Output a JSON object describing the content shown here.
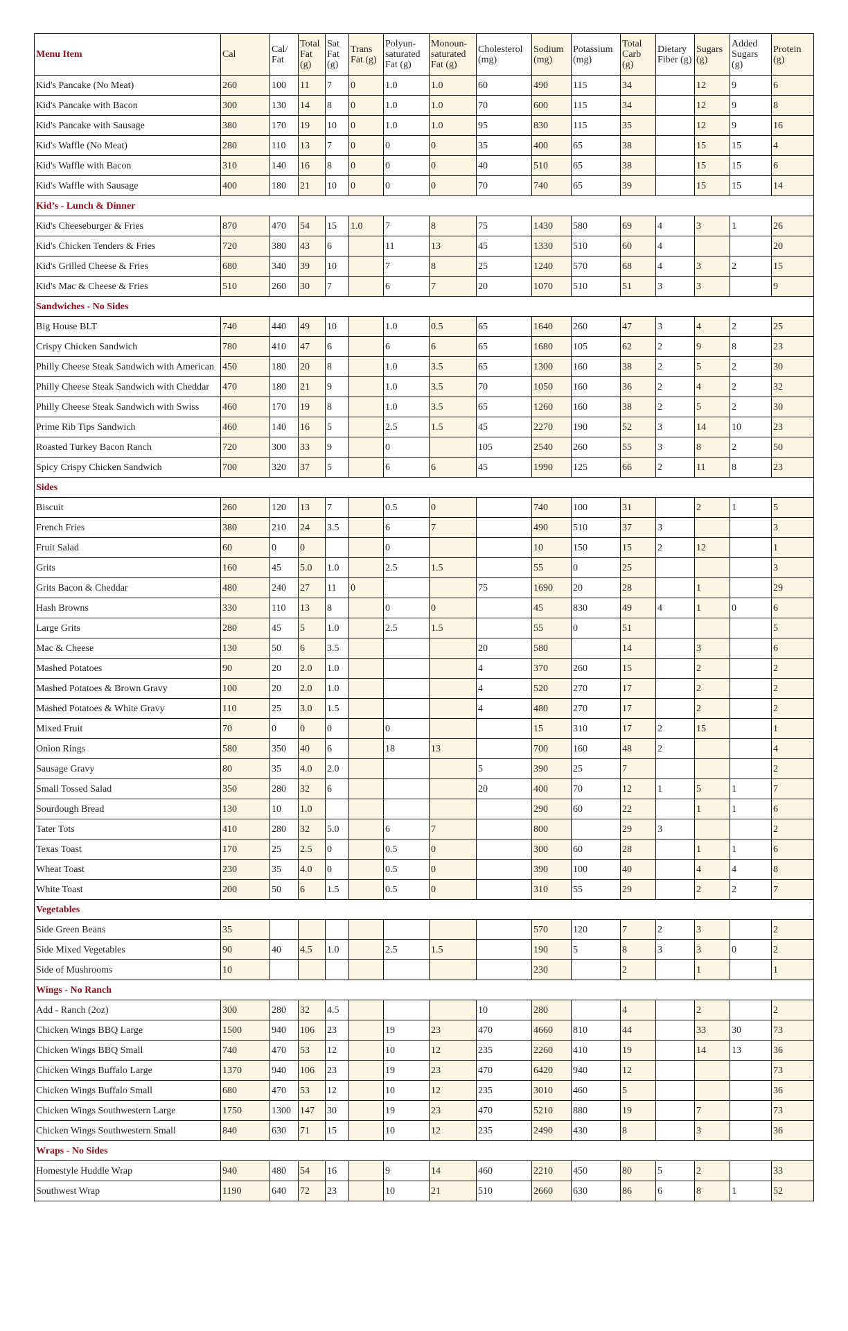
{
  "table": {
    "header": [
      "Menu Item",
      "Cal",
      "Cal/ Fat",
      "Total Fat (g)",
      "Sat Fat (g)",
      "Trans Fat (g)",
      "Polyun-saturated Fat (g)",
      "Monoun-saturated Fat (g)",
      "Cholesterol (mg)",
      "Sodium (mg)",
      "Potassium (mg)",
      "Total Carb (g)",
      "Dietary Fiber (g)",
      "Sugars (g)",
      "Added Sugars (g)",
      "Protein (g)"
    ],
    "rows": [
      {
        "cells": [
          "Kid's Pancake (No Meat)",
          "260",
          "100",
          "11",
          "7",
          "0",
          "1.0",
          "1.0",
          "60",
          "490",
          "115",
          "34",
          null,
          "12",
          "9",
          "6"
        ]
      },
      {
        "cells": [
          "Kid's Pancake with Bacon",
          "300",
          "130",
          "14",
          "8",
          "0",
          "1.0",
          "1.0",
          "70",
          "600",
          "115",
          "34",
          null,
          "12",
          "9",
          "8"
        ]
      },
      {
        "cells": [
          "Kid's Pancake with Sausage",
          "380",
          "170",
          "19",
          "10",
          "0",
          "1.0",
          "1.0",
          "95",
          "830",
          "115",
          "35",
          null,
          "12",
          "9",
          "16"
        ]
      },
      {
        "cells": [
          "Kid's Waffle (No Meat)",
          "280",
          "110",
          "13",
          "7",
          "0",
          "0",
          "0",
          "35",
          "400",
          "65",
          "38",
          null,
          "15",
          "15",
          "4"
        ]
      },
      {
        "cells": [
          "Kid's Waffle with Bacon",
          "310",
          "140",
          "16",
          "8",
          "0",
          "0",
          "0",
          "40",
          "510",
          "65",
          "38",
          null,
          "15",
          "15",
          "6"
        ]
      },
      {
        "cells": [
          "Kid's Waffle with Sausage",
          "400",
          "180",
          "21",
          "10",
          "0",
          "0",
          "0",
          "70",
          "740",
          "65",
          "39",
          null,
          "15",
          "15",
          "14"
        ]
      },
      {
        "section": "Kid’s - Lunch & Dinner"
      },
      {
        "cells": [
          "Kid's Cheeseburger & Fries",
          "870",
          "470",
          "54",
          "15",
          "1.0",
          "7",
          "8",
          "75",
          "1430",
          "580",
          "69",
          "4",
          "3",
          "1",
          "26"
        ]
      },
      {
        "cells": [
          "Kid's Chicken Tenders & Fries",
          "720",
          "380",
          "43",
          "6",
          null,
          "11",
          "13",
          "45",
          "1330",
          "510",
          "60",
          "4",
          null,
          null,
          "20"
        ]
      },
      {
        "cells": [
          "Kid's Grilled Cheese & Fries",
          "680",
          "340",
          "39",
          "10",
          null,
          "7",
          "8",
          "25",
          "1240",
          "570",
          "68",
          "4",
          "3",
          "2",
          "15"
        ]
      },
      {
        "cells": [
          "Kid's Mac & Cheese & Fries",
          "510",
          "260",
          "30",
          "7",
          null,
          "6",
          "7",
          "20",
          "1070",
          "510",
          "51",
          "3",
          "3",
          null,
          "9"
        ]
      },
      {
        "section": "Sandwiches - No Sides"
      },
      {
        "cells": [
          "Big House BLT",
          "740",
          "440",
          "49",
          "10",
          null,
          "1.0",
          "0.5",
          "65",
          "1640",
          "260",
          "47",
          "3",
          "4",
          "2",
          "25"
        ]
      },
      {
        "cells": [
          "Crispy Chicken Sandwich",
          "780",
          "410",
          "47",
          "6",
          null,
          "6",
          "6",
          "65",
          "1680",
          "105",
          "62",
          "2",
          "9",
          "8",
          "23"
        ]
      },
      {
        "cells": [
          "Philly Cheese Steak Sandwich with American",
          "450",
          "180",
          "20",
          "8",
          null,
          "1.0",
          "3.5",
          "65",
          "1300",
          "160",
          "38",
          "2",
          "5",
          "2",
          "30"
        ]
      },
      {
        "cells": [
          "Philly Cheese Steak Sandwich with Cheddar",
          "470",
          "180",
          "21",
          "9",
          null,
          "1.0",
          "3.5",
          "70",
          "1050",
          "160",
          "36",
          "2",
          "4",
          "2",
          "32"
        ]
      },
      {
        "cells": [
          "Philly Cheese Steak Sandwich with Swiss",
          "460",
          "170",
          "19",
          "8",
          null,
          "1.0",
          "3.5",
          "65",
          "1260",
          "160",
          "38",
          "2",
          "5",
          "2",
          "30"
        ]
      },
      {
        "cells": [
          "Prime Rib Tips Sandwich",
          "460",
          "140",
          "16",
          "5",
          null,
          "2.5",
          "1.5",
          "45",
          "2270",
          "190",
          "52",
          "3",
          "14",
          "10",
          "23"
        ]
      },
      {
        "cells": [
          "Roasted Turkey Bacon Ranch",
          "720",
          "300",
          "33",
          "9",
          null,
          "0",
          null,
          "105",
          "2540",
          "260",
          "55",
          "3",
          "8",
          "2",
          "50"
        ]
      },
      {
        "cells": [
          "Spicy Crispy Chicken Sandwich",
          "700",
          "320",
          "37",
          "5",
          null,
          "6",
          "6",
          "45",
          "1990",
          "125",
          "66",
          "2",
          "11",
          "8",
          "23"
        ]
      },
      {
        "section": "Sides"
      },
      {
        "cells": [
          "Biscuit",
          "260",
          "120",
          "13",
          "7",
          null,
          "0.5",
          "0",
          null,
          "740",
          "100",
          "31",
          null,
          "2",
          "1",
          "5"
        ]
      },
      {
        "cells": [
          "French Fries",
          "380",
          "210",
          "24",
          "3.5",
          null,
          "6",
          "7",
          null,
          "490",
          "510",
          "37",
          "3",
          null,
          null,
          "3"
        ]
      },
      {
        "cells": [
          "Fruit Salad",
          "60",
          "0",
          "0",
          null,
          null,
          "0",
          null,
          null,
          "10",
          "150",
          "15",
          "2",
          "12",
          null,
          "1"
        ]
      },
      {
        "cells": [
          "Grits",
          "160",
          "45",
          "5.0",
          "1.0",
          null,
          "2.5",
          "1.5",
          null,
          "55",
          "0",
          "25",
          null,
          null,
          null,
          "3"
        ]
      },
      {
        "cells": [
          "Grits Bacon & Cheddar",
          "480",
          "240",
          "27",
          "11",
          "0",
          null,
          null,
          "75",
          "1690",
          "20",
          "28",
          null,
          "1",
          null,
          "29"
        ]
      },
      {
        "cells": [
          "Hash Browns",
          "330",
          "110",
          "13",
          "8",
          null,
          "0",
          "0",
          null,
          "45",
          "830",
          "49",
          "4",
          "1",
          "0",
          "6"
        ]
      },
      {
        "cells": [
          "Large Grits",
          "280",
          "45",
          "5",
          "1.0",
          null,
          "2.5",
          "1.5",
          null,
          "55",
          "0",
          "51",
          null,
          null,
          null,
          "5"
        ]
      },
      {
        "cells": [
          "Mac & Cheese",
          "130",
          "50",
          "6",
          "3.5",
          null,
          null,
          null,
          "20",
          "580",
          null,
          "14",
          null,
          "3",
          null,
          "6"
        ]
      },
      {
        "cells": [
          "Mashed Potatoes",
          "90",
          "20",
          "2.0",
          "1.0",
          null,
          null,
          null,
          "4",
          "370",
          "260",
          "15",
          null,
          "2",
          null,
          "2"
        ]
      },
      {
        "cells": [
          "Mashed Potatoes & Brown Gravy",
          "100",
          "20",
          "2.0",
          "1.0",
          null,
          null,
          null,
          "4",
          "520",
          "270",
          "17",
          null,
          "2",
          null,
          "2"
        ]
      },
      {
        "cells": [
          "Mashed Potatoes & White Gravy",
          "110",
          "25",
          "3.0",
          "1.5",
          null,
          null,
          null,
          "4",
          "480",
          "270",
          "17",
          null,
          "2",
          null,
          "2"
        ]
      },
      {
        "cells": [
          "Mixed Fruit",
          "70",
          "0",
          "0",
          "0",
          null,
          "0",
          null,
          null,
          "15",
          "310",
          "17",
          "2",
          "15",
          null,
          "1"
        ]
      },
      {
        "cells": [
          "Onion Rings",
          "580",
          "350",
          "40",
          "6",
          null,
          "18",
          "13",
          null,
          "700",
          "160",
          "48",
          "2",
          null,
          null,
          "4"
        ]
      },
      {
        "cells": [
          "Sausage Gravy",
          "80",
          "35",
          "4.0",
          "2.0",
          null,
          null,
          null,
          "5",
          "390",
          "25",
          "7",
          null,
          null,
          null,
          "2"
        ]
      },
      {
        "cells": [
          "Small Tossed Salad",
          "350",
          "280",
          "32",
          "6",
          null,
          null,
          null,
          "20",
          "400",
          "70",
          "12",
          "1",
          "5",
          "1",
          "7"
        ]
      },
      {
        "cells": [
          "Sourdough Bread",
          "130",
          "10",
          "1.0",
          null,
          null,
          null,
          null,
          null,
          "290",
          "60",
          "22",
          null,
          "1",
          "1",
          "6"
        ]
      },
      {
        "cells": [
          "Tater Tots",
          "410",
          "280",
          "32",
          "5.0",
          null,
          "6",
          "7",
          null,
          "800",
          null,
          "29",
          "3",
          null,
          null,
          "2"
        ]
      },
      {
        "cells": [
          "Texas Toast",
          "170",
          "25",
          "2.5",
          "0",
          null,
          "0.5",
          "0",
          null,
          "300",
          "60",
          "28",
          null,
          "1",
          "1",
          "6"
        ]
      },
      {
        "cells": [
          "Wheat Toast",
          "230",
          "35",
          "4.0",
          "0",
          null,
          "0.5",
          "0",
          null,
          "390",
          "100",
          "40",
          null,
          "4",
          "4",
          "8"
        ]
      },
      {
        "cells": [
          "White Toast",
          "200",
          "50",
          "6",
          "1.5",
          null,
          "0.5",
          "0",
          null,
          "310",
          "55",
          "29",
          null,
          "2",
          "2",
          "7"
        ]
      },
      {
        "section": "Vegetables"
      },
      {
        "cells": [
          "Side Green Beans",
          "35",
          null,
          null,
          null,
          null,
          null,
          null,
          null,
          "570",
          "120",
          "7",
          "2",
          "3",
          null,
          "2"
        ]
      },
      {
        "cells": [
          "Side Mixed Vegetables",
          "90",
          "40",
          "4.5",
          "1.0",
          null,
          "2.5",
          "1.5",
          null,
          "190",
          "5",
          "8",
          "3",
          "3",
          "0",
          "2"
        ]
      },
      {
        "cells": [
          "Side of Mushrooms",
          "10",
          null,
          null,
          null,
          null,
          null,
          null,
          null,
          "230",
          null,
          "2",
          null,
          "1",
          null,
          "1"
        ]
      },
      {
        "section": "Wings - No Ranch"
      },
      {
        "cells": [
          "Add - Ranch (2oz)",
          "300",
          "280",
          "32",
          "4.5",
          null,
          null,
          null,
          "10",
          "280",
          null,
          "4",
          null,
          "2",
          null,
          "2"
        ]
      },
      {
        "cells": [
          "Chicken Wings BBQ Large",
          "1500",
          "940",
          "106",
          "23",
          null,
          "19",
          "23",
          "470",
          "4660",
          "810",
          "44",
          null,
          "33",
          "30",
          "73"
        ]
      },
      {
        "cells": [
          "Chicken Wings BBQ Small",
          "740",
          "470",
          "53",
          "12",
          null,
          "10",
          "12",
          "235",
          "2260",
          "410",
          "19",
          null,
          "14",
          "13",
          "36"
        ]
      },
      {
        "cells": [
          "Chicken Wings Buffalo Large",
          "1370",
          "940",
          "106",
          "23",
          null,
          "19",
          "23",
          "470",
          "6420",
          "940",
          "12",
          null,
          null,
          null,
          "73"
        ]
      },
      {
        "cells": [
          "Chicken Wings Buffalo Small",
          "680",
          "470",
          "53",
          "12",
          null,
          "10",
          "12",
          "235",
          "3010",
          "460",
          "5",
          null,
          null,
          null,
          "36"
        ]
      },
      {
        "cells": [
          "Chicken Wings Southwestern Large",
          "1750",
          "1300",
          "147",
          "30",
          null,
          "19",
          "23",
          "470",
          "5210",
          "880",
          "19",
          null,
          "7",
          null,
          "73"
        ]
      },
      {
        "cells": [
          "Chicken Wings Southwestern Small",
          "840",
          "630",
          "71",
          "15",
          null,
          "10",
          "12",
          "235",
          "2490",
          "430",
          "8",
          null,
          "3",
          null,
          "36"
        ]
      },
      {
        "section": "Wraps - No Sides"
      },
      {
        "cells": [
          "Homestyle Huddle Wrap",
          "940",
          "480",
          "54",
          "16",
          null,
          "9",
          "14",
          "460",
          "2210",
          "450",
          "80",
          "5",
          "2",
          null,
          "33"
        ]
      },
      {
        "cells": [
          "Southwest Wrap",
          "1190",
          "640",
          "72",
          "23",
          null,
          "10",
          "21",
          "510",
          "2660",
          "630",
          "86",
          "6",
          "8",
          "1",
          "52"
        ]
      }
    ]
  }
}
